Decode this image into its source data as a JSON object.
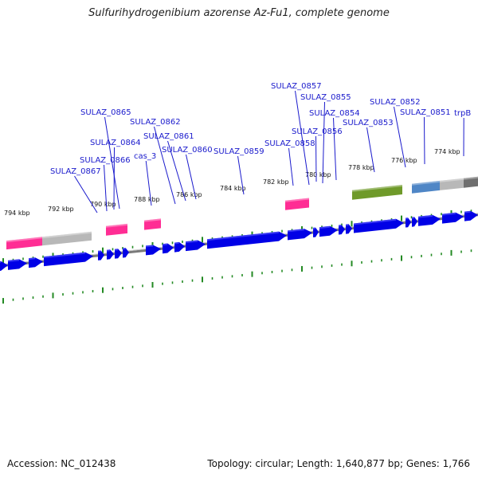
{
  "title": "Sulfurihydrogenibium azorense Az-Fu1, complete genome",
  "accession": "Accession: NC_012438",
  "summary": "Topology: circular; Length: 1,640,877 bp; Genes: 1,766",
  "colors": {
    "cds": "#0000e6",
    "trna": "#ff2d94",
    "gray_feature": "#b8b8b8",
    "olive_feature": "#6f9a2a",
    "steel_feature": "#4f86c6",
    "backbone": "#7a7a7a",
    "tick": "#238a23",
    "label": "#1a1acc"
  },
  "scale_labels": [
    "794 kbp",
    "792 kbp",
    "790 kbp",
    "788 kbp",
    "786 kbp",
    "784 kbp",
    "782 kbp",
    "780 kbp",
    "778 kbp",
    "776 kbp",
    "774 kbp"
  ],
  "gene_labels": [
    "SULAZ_0857",
    "SULAZ_0855",
    "SULAZ_0854",
    "SULAZ_0852",
    "SULAZ_0851",
    "trpB",
    "SULAZ_0865",
    "SULAZ_0856",
    "SULAZ_0853",
    "SULAZ_0862",
    "SULAZ_0861",
    "SULAZ_0864",
    "SULAZ_0858",
    "SULAZ_0860",
    "SULAZ_0859",
    "cas_3",
    "SULAZ_0866",
    "SULAZ_0867"
  ]
}
